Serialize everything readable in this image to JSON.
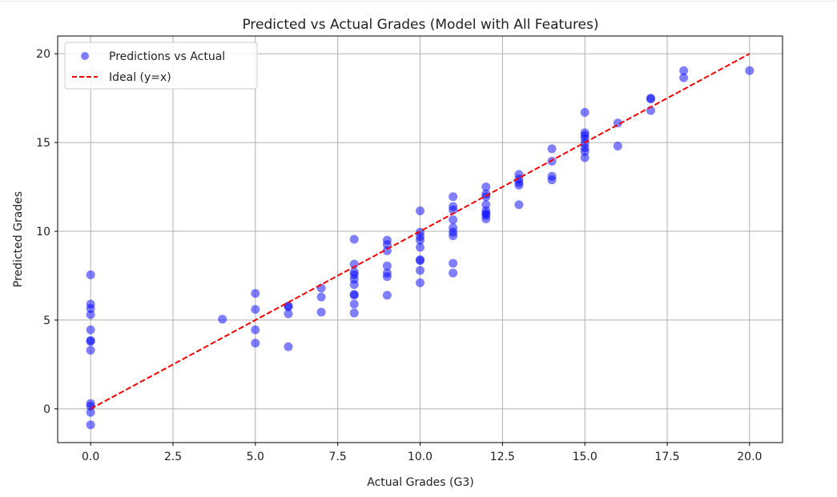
{
  "chart_data": {
    "type": "scatter",
    "title": "Predicted vs Actual Grades (Model with All Features)",
    "xlabel": "Actual Grades (G3)",
    "ylabel": "Predicted Grades",
    "xlim": [
      -1.0,
      21.0
    ],
    "ylim": [
      -1.9,
      21.0
    ],
    "grid": true,
    "legend_position": "top-left",
    "xticks": [
      0.0,
      2.5,
      5.0,
      7.5,
      10.0,
      12.5,
      15.0,
      17.5,
      20.0
    ],
    "xtick_labels": [
      "0.0",
      "2.5",
      "5.0",
      "7.5",
      "10.0",
      "12.5",
      "15.0",
      "17.5",
      "20.0"
    ],
    "yticks": [
      0,
      5,
      10,
      15,
      20
    ],
    "ytick_labels": [
      "0",
      "5",
      "10",
      "15",
      "20"
    ],
    "series": [
      {
        "name": "Predictions vs Actual",
        "kind": "scatter",
        "color": "#0000ff",
        "alpha": 0.5,
        "points": [
          [
            0,
            7.55
          ],
          [
            0,
            5.9
          ],
          [
            0,
            5.65
          ],
          [
            0,
            5.3
          ],
          [
            0,
            4.45
          ],
          [
            0,
            3.85
          ],
          [
            0,
            3.8
          ],
          [
            0,
            3.3
          ],
          [
            0,
            0.3
          ],
          [
            0,
            0.15
          ],
          [
            0,
            -0.2
          ],
          [
            0,
            -0.9
          ],
          [
            4,
            5.05
          ],
          [
            5,
            6.5
          ],
          [
            5,
            5.6
          ],
          [
            5,
            4.45
          ],
          [
            5,
            3.7
          ],
          [
            6,
            5.8
          ],
          [
            6,
            5.75
          ],
          [
            6,
            5.35
          ],
          [
            6,
            3.5
          ],
          [
            7,
            6.8
          ],
          [
            7,
            6.3
          ],
          [
            7,
            5.45
          ],
          [
            8,
            9.55
          ],
          [
            8,
            8.15
          ],
          [
            8,
            7.7
          ],
          [
            8,
            7.55
          ],
          [
            8,
            7.3
          ],
          [
            8,
            7.0
          ],
          [
            8,
            6.45
          ],
          [
            8,
            6.4
          ],
          [
            8,
            5.9
          ],
          [
            8,
            5.4
          ],
          [
            9,
            9.5
          ],
          [
            9,
            9.25
          ],
          [
            9,
            8.9
          ],
          [
            9,
            8.05
          ],
          [
            9,
            7.65
          ],
          [
            9,
            7.45
          ],
          [
            9,
            6.4
          ],
          [
            10,
            11.15
          ],
          [
            10,
            9.95
          ],
          [
            10,
            9.7
          ],
          [
            10,
            9.5
          ],
          [
            10,
            9.1
          ],
          [
            10,
            8.4
          ],
          [
            10,
            8.35
          ],
          [
            10,
            7.8
          ],
          [
            10,
            7.1
          ],
          [
            11,
            11.95
          ],
          [
            11,
            11.4
          ],
          [
            11,
            11.2
          ],
          [
            11,
            10.65
          ],
          [
            11,
            10.2
          ],
          [
            11,
            9.95
          ],
          [
            11,
            9.75
          ],
          [
            11,
            8.2
          ],
          [
            11,
            7.65
          ],
          [
            12,
            12.5
          ],
          [
            12,
            12.1
          ],
          [
            12,
            11.95
          ],
          [
            12,
            11.5
          ],
          [
            12,
            11.15
          ],
          [
            12,
            11.0
          ],
          [
            12,
            10.9
          ],
          [
            12,
            10.7
          ],
          [
            13,
            13.2
          ],
          [
            13,
            12.95
          ],
          [
            13,
            12.75
          ],
          [
            13,
            12.6
          ],
          [
            13,
            11.5
          ],
          [
            14,
            14.65
          ],
          [
            14,
            13.95
          ],
          [
            14,
            13.1
          ],
          [
            14,
            12.9
          ],
          [
            15,
            16.7
          ],
          [
            15,
            15.55
          ],
          [
            15,
            15.4
          ],
          [
            15,
            15.2
          ],
          [
            15,
            14.95
          ],
          [
            15,
            14.7
          ],
          [
            15,
            14.5
          ],
          [
            15,
            14.15
          ],
          [
            16,
            16.1
          ],
          [
            16,
            14.8
          ],
          [
            17,
            17.5
          ],
          [
            17,
            17.45
          ],
          [
            17,
            16.8
          ],
          [
            18,
            19.05
          ],
          [
            18,
            18.65
          ],
          [
            20,
            19.05
          ]
        ]
      },
      {
        "name": "Ideal (y=x)",
        "kind": "line",
        "style": "dashed",
        "color": "#ff0000",
        "points": [
          [
            0,
            0
          ],
          [
            20,
            20
          ]
        ]
      }
    ]
  }
}
